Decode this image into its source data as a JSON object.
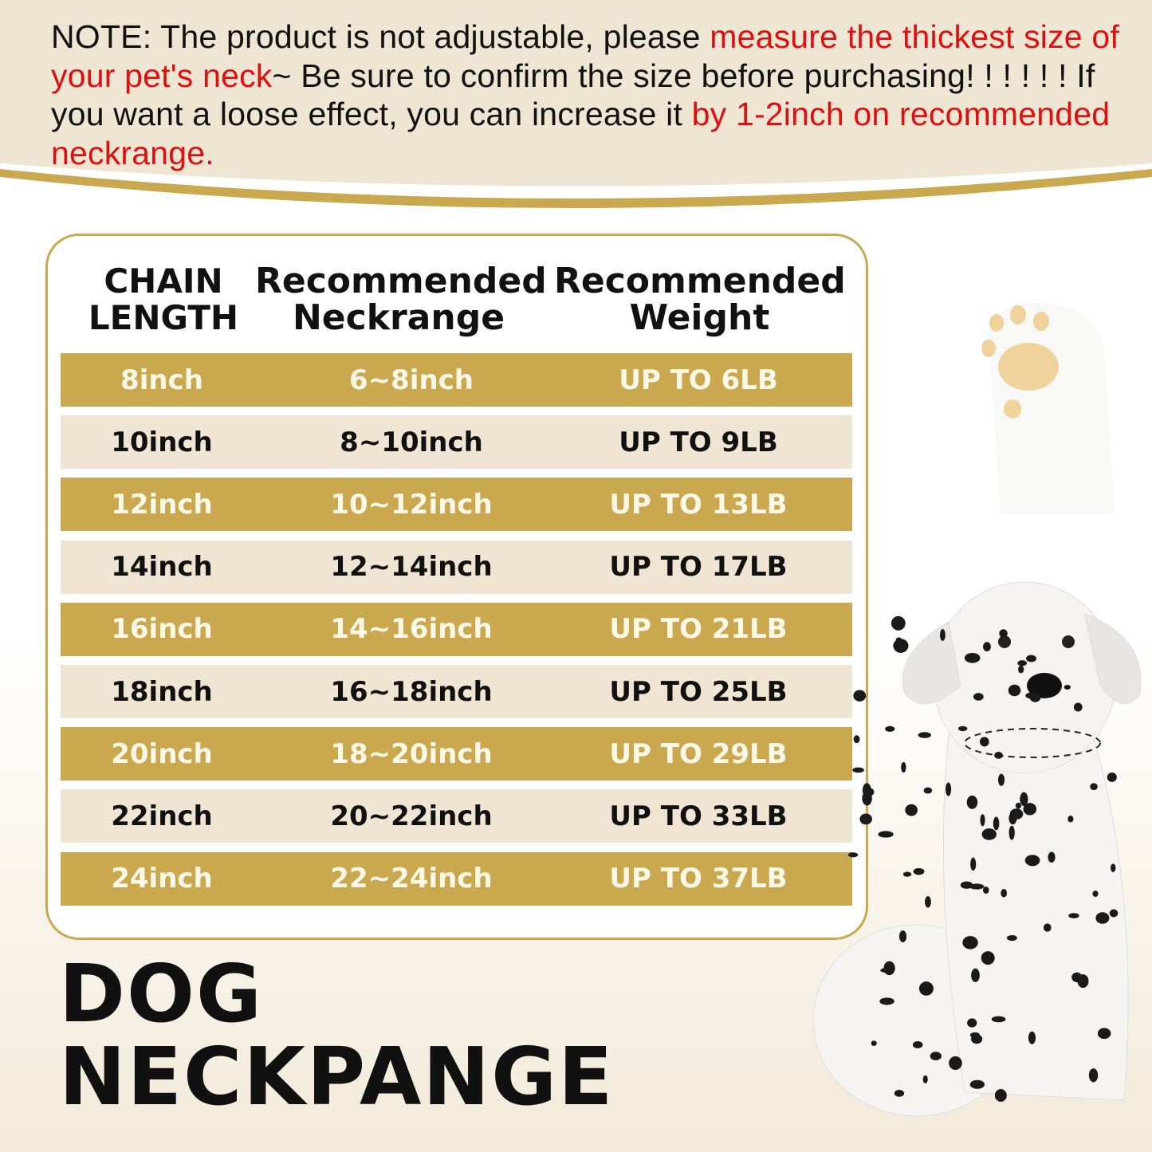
{
  "note": {
    "parts": [
      {
        "text": "NOTE: The product is not adjustable, please ",
        "color": "#111111"
      },
      {
        "text": "measure the thickest size of your pet's neck",
        "color": "#e00f0f"
      },
      {
        "text": "~ Be sure to confirm the size before purchasing! ! ! ! ! ! If you want a loose effect, you can increase it ",
        "color": "#111111"
      },
      {
        "text": "by 1-2inch on recommended neckrange.",
        "color": "#e00f0f"
      }
    ]
  },
  "table": {
    "headers": [
      "CHAIN LENGTH",
      "Recommended Neckrange",
      "Recommended Weight"
    ],
    "rows": [
      [
        "8inch",
        "6~8inch",
        "UP TO 6LB"
      ],
      [
        "10inch",
        "8~10inch",
        "UP TO 9LB"
      ],
      [
        "12inch",
        "10~12inch",
        "UP TO 13LB"
      ],
      [
        "14inch",
        "12~14inch",
        "UP TO 17LB"
      ],
      [
        "16inch",
        "14~16inch",
        "UP TO 21LB"
      ],
      [
        "18inch",
        "16~18inch",
        "UP TO 25LB"
      ],
      [
        "20inch",
        "18~20inch",
        "UP TO 29LB"
      ],
      [
        "22inch",
        "20~22inch",
        "UP TO 33LB"
      ],
      [
        "24inch",
        "22~24inch",
        "UP TO 37LB"
      ]
    ]
  },
  "title": {
    "line1": "DOG",
    "line2": "NECKPANGE"
  },
  "colors": {
    "gold": "#c9a84f",
    "light_row": "#efe5d2",
    "accent_red": "#e00f0f"
  },
  "icons": [
    "paw-print-icon",
    "dalmatian-dog-image"
  ]
}
